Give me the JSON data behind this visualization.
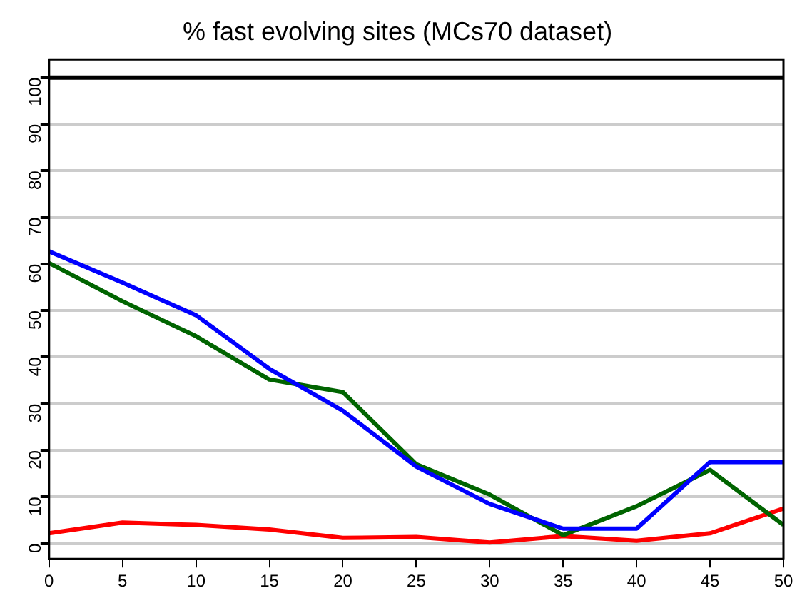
{
  "chart_data": {
    "type": "line",
    "title": "% fast evolving sites (MCs70 dataset)",
    "x": [
      0,
      5,
      10,
      15,
      20,
      25,
      30,
      35,
      40,
      45,
      50
    ],
    "series": [
      {
        "color": "#0000ff",
        "values": [
          62.7,
          56,
          49,
          37.5,
          28.5,
          16.5,
          8.5,
          3.2,
          3.2,
          17.5,
          17.5
        ]
      },
      {
        "color": "#006400",
        "values": [
          60.2,
          52,
          44.5,
          35.2,
          32.5,
          17,
          10.5,
          1.8,
          8,
          15.8,
          4
        ]
      },
      {
        "color": "#ff0000",
        "values": [
          2.2,
          4.5,
          4,
          3,
          1.2,
          1.4,
          0.2,
          1.6,
          0.6,
          2.2,
          7.5
        ]
      }
    ],
    "xlim": [
      0,
      50
    ],
    "xticks": [
      0,
      5,
      10,
      15,
      20,
      25,
      30,
      35,
      40,
      45,
      50
    ],
    "ylim": [
      -3.3,
      103.9
    ],
    "yticks": [
      0,
      10,
      20,
      30,
      40,
      50,
      60,
      70,
      80,
      90,
      100
    ],
    "grid": "y",
    "legend": false,
    "marker": "none",
    "line_style": "solid",
    "ref_lines": [
      {
        "axis": "y",
        "value": 100,
        "color": "#000000",
        "line_style": "solid"
      }
    ]
  }
}
